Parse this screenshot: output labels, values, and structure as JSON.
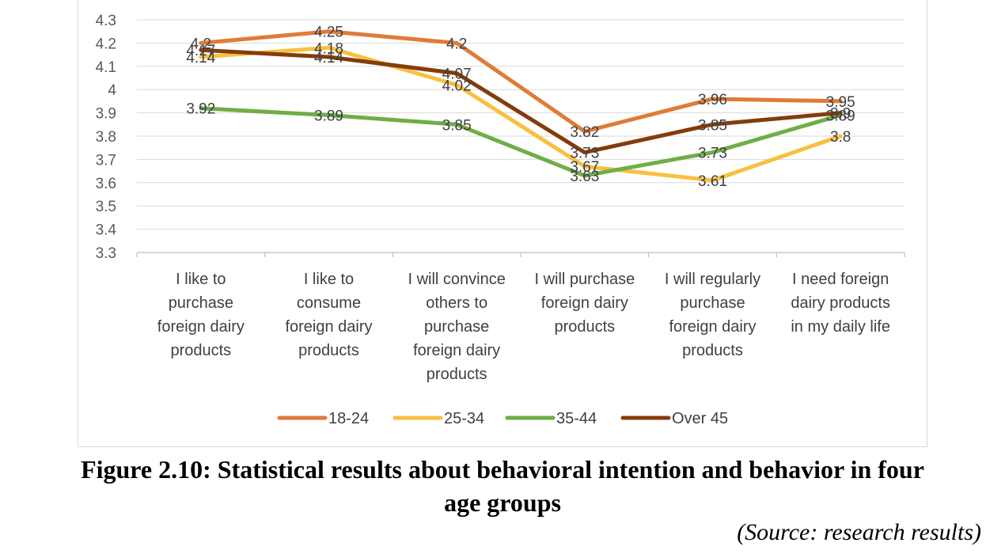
{
  "chart_data": {
    "type": "line",
    "title": "",
    "xlabel": "",
    "ylabel": "",
    "ylim": [
      3.3,
      4.3
    ],
    "yticks": [
      "4.3",
      "4.2",
      "4.1",
      "4",
      "3.9",
      "3.8",
      "3.7",
      "3.6",
      "3.5",
      "3.4",
      "3.3"
    ],
    "grid": true,
    "legend_position": "bottom",
    "categories": [
      [
        "I like to",
        "purchase",
        "foreign dairy",
        "products"
      ],
      [
        "I like to",
        "consume",
        "foreign dairy",
        "products"
      ],
      [
        "I will convince",
        "others to",
        "purchase",
        "foreign dairy",
        "products"
      ],
      [
        "I will purchase",
        "foreign dairy",
        "products"
      ],
      [
        "I will regularly",
        "purchase",
        "foreign dairy",
        "products"
      ],
      [
        "I need foreign",
        "dairy products",
        "in my daily life"
      ]
    ],
    "series": [
      {
        "name": "18-24",
        "color": "#E07B39",
        "values": [
          4.2,
          4.25,
          4.2,
          3.82,
          3.96,
          3.95
        ],
        "labels": [
          "4.2",
          "4.25",
          "4.2",
          "3.82",
          "3.96",
          "3.95"
        ]
      },
      {
        "name": "25-34",
        "color": "#F6C141",
        "values": [
          4.14,
          4.18,
          4.02,
          3.67,
          3.61,
          3.8
        ],
        "labels": [
          "4.14",
          "4.18",
          "4.02",
          "3.67",
          "3.61",
          "3.8"
        ]
      },
      {
        "name": "35-44",
        "color": "#70AD47",
        "values": [
          3.92,
          3.89,
          3.85,
          3.63,
          3.73,
          3.89
        ],
        "labels": [
          "3.92",
          "3.89",
          "3.85",
          "3.63",
          "3.73",
          "3.89"
        ]
      },
      {
        "name": "Over 45",
        "color": "#843C0C",
        "values": [
          4.17,
          4.14,
          4.07,
          3.73,
          3.85,
          3.9
        ],
        "labels": [
          "4.17",
          "4.14",
          "4.07",
          "3.73",
          "3.85",
          "3.9"
        ]
      }
    ]
  },
  "caption": {
    "line1": "Figure 2.10: Statistical results about behavioral intention and behavior in four",
    "line2": "age groups"
  },
  "source": "(Source: research results)"
}
